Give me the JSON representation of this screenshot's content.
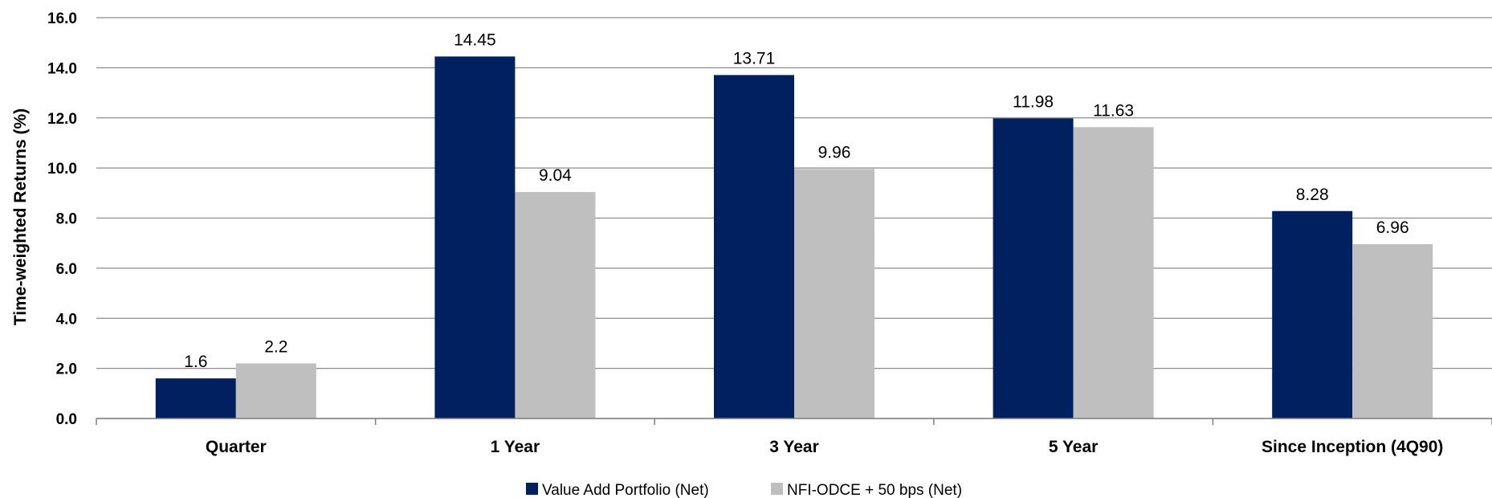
{
  "chart_data": {
    "type": "bar",
    "categories": [
      "Quarter",
      "1 Year",
      "3 Year",
      "5 Year",
      "Since Inception (4Q90)"
    ],
    "series": [
      {
        "name": "Value Add Portfolio (Net)",
        "color": "#002060",
        "values": [
          1.6,
          14.45,
          13.71,
          11.98,
          8.28
        ],
        "labels": [
          "1.6",
          "14.45",
          "13.71",
          "11.98",
          "8.28"
        ]
      },
      {
        "name": "NFI-ODCE + 50 bps (Net)",
        "color": "#BFBFBF",
        "values": [
          2.2,
          9.04,
          9.96,
          11.63,
          6.96
        ],
        "labels": [
          "2.2",
          "9.04",
          "9.96",
          "11.63",
          "6.96"
        ]
      }
    ],
    "title": "",
    "xlabel": "",
    "ylabel": "Time-weighted Returns (%)",
    "ylim": [
      0,
      16
    ],
    "yticks": [
      0,
      2,
      4,
      6,
      8,
      10,
      12,
      14,
      16
    ],
    "ytick_labels": [
      "0.0",
      "2.0",
      "4.0",
      "6.0",
      "8.0",
      "10.0",
      "12.0",
      "14.0",
      "16.0"
    ],
    "grid": true,
    "grid_color": "#8C8C8C",
    "legend_position": "bottom"
  }
}
